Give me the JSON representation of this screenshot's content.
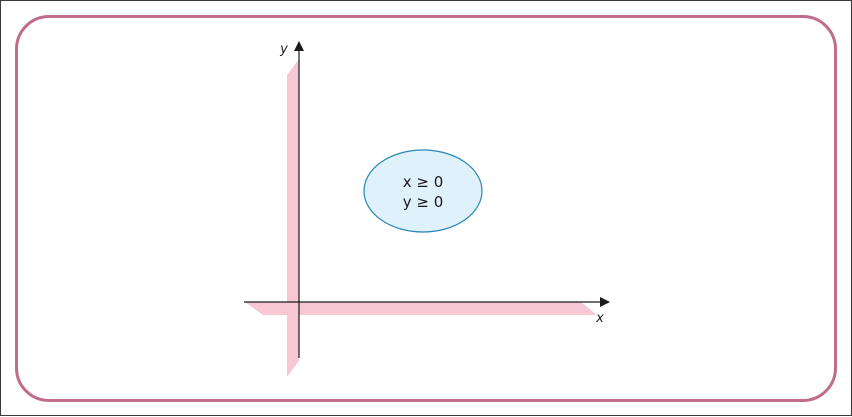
{
  "diagram": {
    "x_axis_label": "x",
    "y_axis_label": "y",
    "constraints": [
      "x ≥ 0",
      "y ≥ 0"
    ],
    "colors": {
      "frame_border": "#c06c8c",
      "shading": "#f7c8d4",
      "ellipse_fill": "#dff2fb",
      "ellipse_stroke": "#2a87b8",
      "axis": "#1a1a1a"
    }
  }
}
